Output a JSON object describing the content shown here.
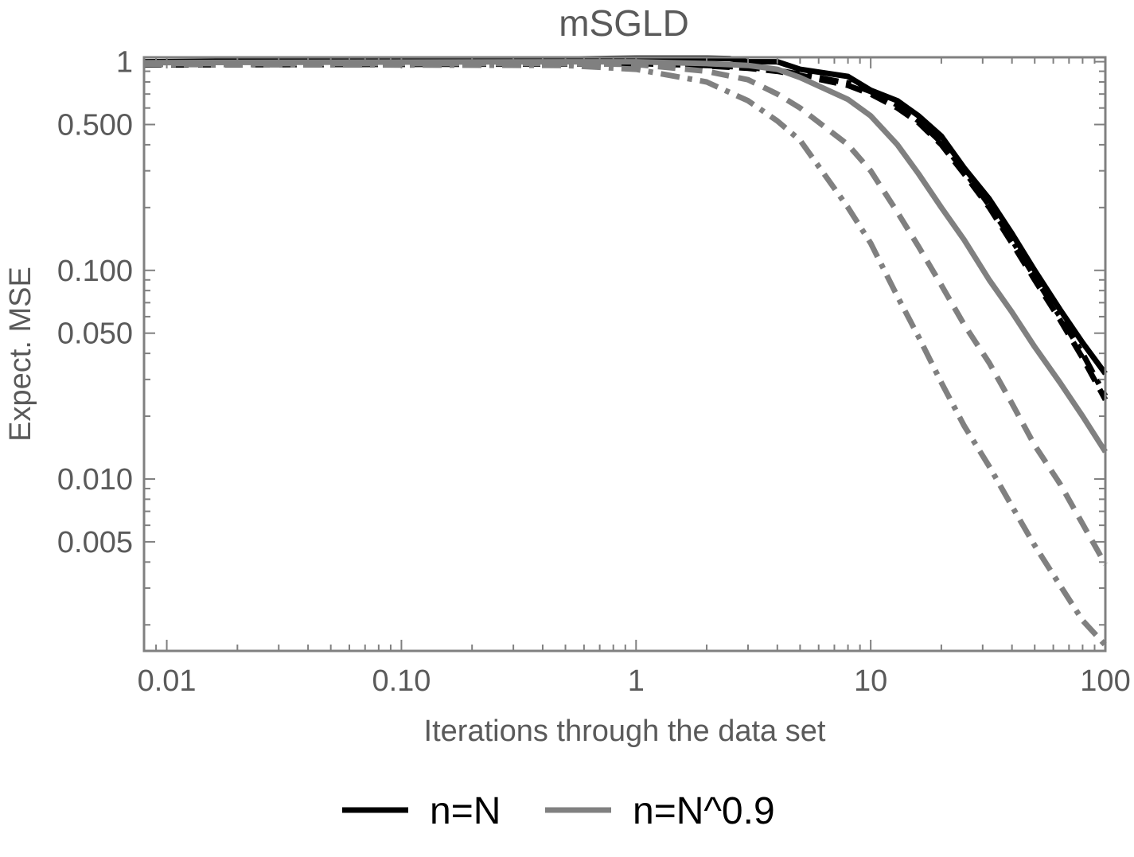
{
  "chart_data": {
    "type": "line",
    "title": "mSGLD",
    "xlabel": "Iterations through the data set",
    "ylabel": "Expect. MSE",
    "x_scale": "log",
    "y_scale": "log",
    "xlim": [
      0.008,
      100
    ],
    "ylim": [
      0.0015,
      1.05
    ],
    "x_ticks": [
      {
        "value": 0.01,
        "label": "0.01"
      },
      {
        "value": 0.1,
        "label": "0.10"
      },
      {
        "value": 1,
        "label": "1"
      },
      {
        "value": 10,
        "label": "10"
      },
      {
        "value": 100,
        "label": "100"
      }
    ],
    "y_ticks": [
      {
        "value": 1,
        "label": "1"
      },
      {
        "value": 0.5,
        "label": "0.500"
      },
      {
        "value": 0.1,
        "label": "0.100"
      },
      {
        "value": 0.05,
        "label": "0.050"
      },
      {
        "value": 0.01,
        "label": "0.010"
      },
      {
        "value": 0.005,
        "label": "0.005"
      }
    ],
    "grid": false,
    "legend_position": "bottom",
    "legend": [
      {
        "label": "n=N",
        "color": "#000000"
      },
      {
        "label": "n=N^0.9",
        "color": "#808080"
      }
    ],
    "series": [
      {
        "color": "#000000",
        "dash": "solid",
        "x": [
          0.008,
          0.5,
          1,
          2,
          2.5,
          3,
          4,
          5,
          8,
          10,
          13,
          16,
          20,
          25,
          32,
          40,
          50,
          64,
          80,
          100
        ],
        "y": [
          1.0,
          1.03,
          1.04,
          1.04,
          1.035,
          1.0,
          1.0,
          0.92,
          0.85,
          0.73,
          0.65,
          0.55,
          0.44,
          0.31,
          0.22,
          0.15,
          0.1,
          0.065,
          0.045,
          0.032
        ]
      },
      {
        "color": "#000000",
        "dash": "dash",
        "x": [
          0.008,
          0.5,
          1,
          2,
          3,
          4,
          5,
          8,
          10,
          13,
          16,
          20,
          25,
          32,
          40,
          50,
          64,
          80,
          100
        ],
        "y": [
          0.965,
          0.975,
          0.975,
          0.955,
          0.93,
          0.9,
          0.86,
          0.77,
          0.7,
          0.6,
          0.51,
          0.4,
          0.29,
          0.2,
          0.135,
          0.09,
          0.058,
          0.038,
          0.024
        ]
      },
      {
        "color": "#000000",
        "dash": "dashdot",
        "x": [
          0.008,
          0.5,
          1,
          2,
          3,
          4,
          5,
          8,
          10,
          13,
          16,
          20,
          25,
          32,
          40,
          50,
          64,
          80,
          100
        ],
        "y": [
          0.97,
          0.98,
          0.98,
          0.96,
          0.94,
          0.91,
          0.87,
          0.79,
          0.72,
          0.62,
          0.52,
          0.41,
          0.3,
          0.205,
          0.14,
          0.093,
          0.06,
          0.04,
          0.025
        ]
      },
      {
        "color": "#808080",
        "dash": "solid",
        "x": [
          0.008,
          0.5,
          1,
          2,
          3,
          4,
          5,
          8,
          10,
          13,
          16,
          20,
          25,
          32,
          40,
          50,
          64,
          80,
          100
        ],
        "y": [
          0.99,
          1.0,
          1.0,
          0.98,
          0.96,
          0.92,
          0.84,
          0.66,
          0.55,
          0.4,
          0.29,
          0.2,
          0.14,
          0.09,
          0.063,
          0.043,
          0.029,
          0.02,
          0.0135
        ]
      },
      {
        "color": "#808080",
        "dash": "dash",
        "x": [
          0.008,
          0.5,
          1,
          2,
          3,
          4,
          5,
          8,
          10,
          13,
          16,
          20,
          25,
          32,
          40,
          50,
          64,
          80,
          100
        ],
        "y": [
          0.98,
          0.98,
          0.97,
          0.9,
          0.82,
          0.7,
          0.6,
          0.4,
          0.3,
          0.19,
          0.13,
          0.085,
          0.055,
          0.036,
          0.023,
          0.0145,
          0.0095,
          0.0061,
          0.0039
        ]
      },
      {
        "color": "#808080",
        "dash": "dashdot",
        "x": [
          0.008,
          0.5,
          1,
          2,
          3,
          4,
          5,
          8,
          10,
          13,
          16,
          20,
          25,
          32,
          40,
          50,
          64,
          80,
          100
        ],
        "y": [
          0.97,
          0.96,
          0.92,
          0.8,
          0.65,
          0.52,
          0.42,
          0.2,
          0.135,
          0.075,
          0.048,
          0.029,
          0.018,
          0.0115,
          0.0074,
          0.0048,
          0.0031,
          0.0021,
          0.0016
        ]
      }
    ]
  }
}
